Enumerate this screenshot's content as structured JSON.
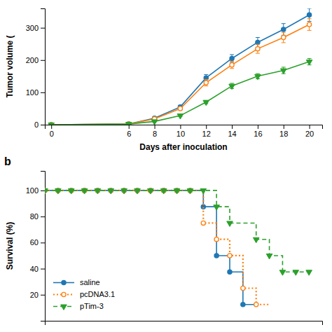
{
  "chart_data": [
    {
      "type": "line",
      "x_label": "Days after inoculation",
      "y_label": "Tumor volume (",
      "x": [
        0,
        6,
        8,
        10,
        12,
        14,
        16,
        18,
        20
      ],
      "xlim": [
        -0.5,
        21
      ],
      "xticks": [
        0,
        6,
        8,
        10,
        12,
        14,
        16,
        18,
        20
      ],
      "ylim": [
        0,
        360
      ],
      "yticks": [
        0,
        100,
        200,
        300
      ],
      "series": [
        {
          "marker": "circle",
          "line_style": "solid",
          "values": [
            0,
            2,
            20,
            55,
            145,
            205,
            255,
            295,
            340
          ],
          "errors": [
            0,
            0,
            3,
            5,
            10,
            12,
            15,
            18,
            20
          ]
        },
        {
          "marker": "open-circle",
          "line_style": "solid",
          "values": [
            0,
            2,
            18,
            50,
            130,
            185,
            235,
            270,
            310
          ],
          "errors": [
            0,
            0,
            3,
            5,
            10,
            11,
            14,
            16,
            18
          ]
        },
        {
          "marker": "triangle-down",
          "line_style": "solid",
          "values": [
            0,
            2,
            10,
            28,
            70,
            120,
            150,
            168,
            195
          ],
          "errors": [
            0,
            0,
            2,
            3,
            5,
            8,
            8,
            10,
            10
          ]
        }
      ]
    },
    {
      "type": "step",
      "y_label": "Survival (%)",
      "xlim": [
        0,
        21
      ],
      "ylim": [
        0,
        115
      ],
      "yticks": [
        20,
        40,
        60,
        80,
        100
      ],
      "tick_labels": "y",
      "legend": "lower-left",
      "annotations": [
        {
          "text": "b"
        }
      ],
      "series": [
        {
          "name": "saline",
          "line_style": "solid",
          "marker": "circle",
          "x": [
            0,
            1,
            2,
            3,
            4,
            5,
            6,
            7,
            8,
            9,
            10,
            11,
            12,
            12,
            13,
            13,
            14,
            14,
            15,
            15,
            16
          ],
          "values": [
            100,
            100,
            100,
            100,
            100,
            100,
            100,
            100,
            100,
            100,
            100,
            100,
            100,
            87.5,
            87.5,
            50,
            50,
            37.5,
            37.5,
            12.5,
            12.5
          ],
          "marker_x": [
            0,
            1,
            2,
            3,
            4,
            5,
            6,
            7,
            8,
            9,
            10,
            11,
            12,
            13,
            14,
            15
          ],
          "marker_values": [
            100,
            100,
            100,
            100,
            100,
            100,
            100,
            100,
            100,
            100,
            100,
            100,
            87.5,
            50,
            37.5,
            12.5
          ]
        },
        {
          "name": "pcDNA3.1",
          "line_style": "dotted",
          "marker": "open-circle",
          "x": [
            0,
            1,
            2,
            3,
            4,
            5,
            6,
            7,
            8,
            9,
            10,
            11,
            12,
            12,
            13,
            13,
            14,
            14,
            15,
            15,
            16,
            16,
            17
          ],
          "values": [
            100,
            100,
            100,
            100,
            100,
            100,
            100,
            100,
            100,
            100,
            100,
            100,
            100,
            75,
            75,
            62.5,
            62.5,
            50,
            50,
            25,
            25,
            12.5,
            12.5
          ],
          "marker_x": [
            0,
            1,
            2,
            3,
            4,
            5,
            6,
            7,
            8,
            9,
            10,
            11,
            12,
            13,
            14,
            15,
            16
          ],
          "marker_values": [
            100,
            100,
            100,
            100,
            100,
            100,
            100,
            100,
            100,
            100,
            100,
            100,
            75,
            62.5,
            50,
            25,
            12.5
          ]
        },
        {
          "name": "pTim-3",
          "line_style": "dashed",
          "marker": "triangle-down",
          "x": [
            0,
            1,
            2,
            3,
            4,
            5,
            6,
            7,
            8,
            9,
            10,
            11,
            12,
            13,
            13,
            14,
            14,
            15,
            15,
            16,
            16,
            17,
            17,
            18,
            18,
            19,
            19,
            20
          ],
          "values": [
            100,
            100,
            100,
            100,
            100,
            100,
            100,
            100,
            100,
            100,
            100,
            100,
            100,
            100,
            87.5,
            87.5,
            75,
            75,
            75,
            75,
            62.5,
            62.5,
            50,
            50,
            37.5,
            37.5,
            37.5,
            37.5
          ],
          "marker_x": [
            0,
            1,
            2,
            3,
            4,
            5,
            6,
            7,
            8,
            9,
            10,
            11,
            12,
            13,
            14,
            16,
            17,
            18,
            19,
            20
          ],
          "marker_values": [
            100,
            100,
            100,
            100,
            100,
            100,
            100,
            100,
            100,
            100,
            100,
            100,
            100,
            87.5,
            75,
            62.5,
            50,
            37.5,
            37.5,
            37.5
          ]
        }
      ]
    }
  ]
}
